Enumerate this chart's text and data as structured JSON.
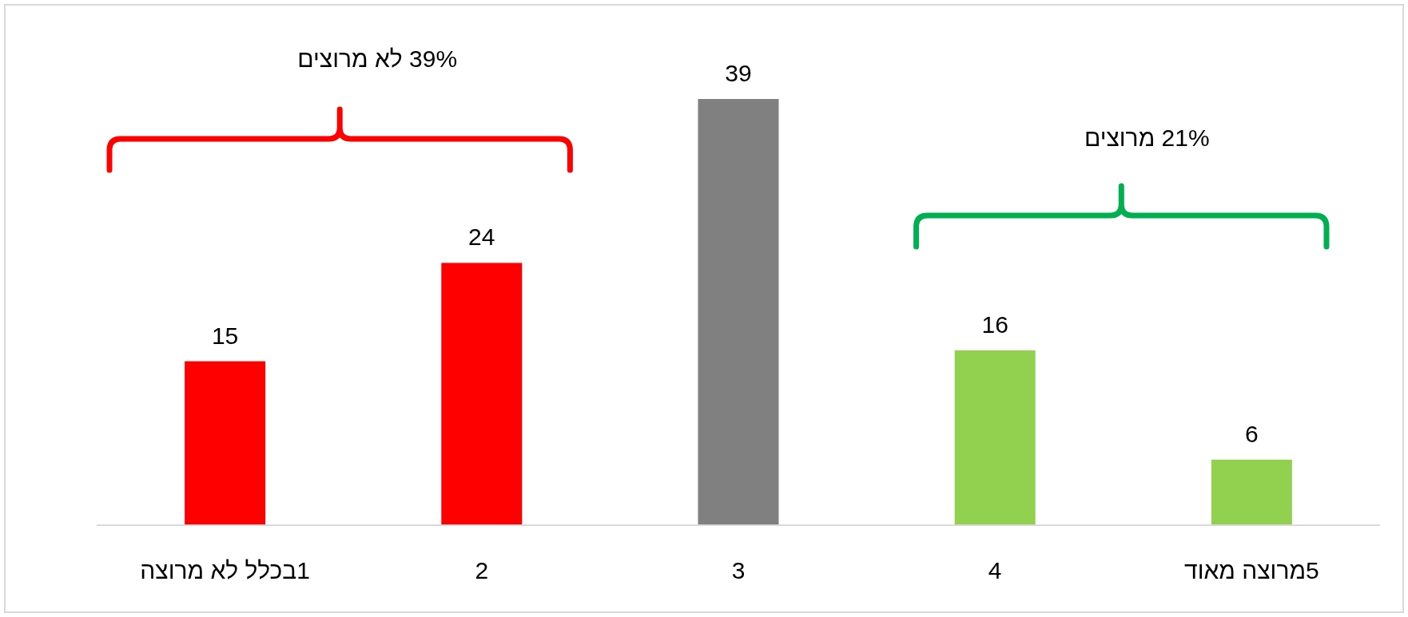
{
  "chart_data": {
    "type": "bar",
    "categories": [
      "1בכלל לא מרוצה",
      "2",
      "3",
      "4",
      "5מרוצה מאוד"
    ],
    "values": [
      15,
      24,
      39,
      16,
      6
    ],
    "colors": [
      "#ff0000",
      "#ff0000",
      "#808080",
      "#92d050",
      "#92d050"
    ],
    "data_labels": true,
    "annotations": [
      "39% לא מרוצים",
      "21% מרוצים"
    ]
  }
}
